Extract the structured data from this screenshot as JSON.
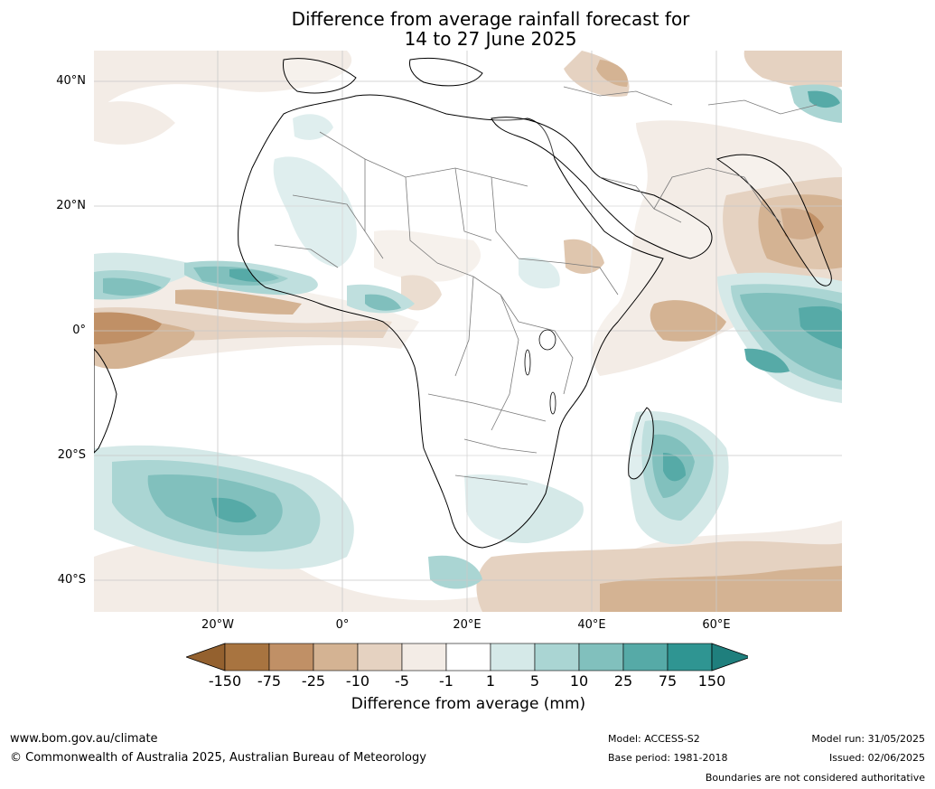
{
  "title_line1": "Difference from average rainfall forecast for",
  "title_line2": "14 to 27 June 2025",
  "lat_labels": [
    "40°N",
    "20°N",
    "0°",
    "20°S",
    "40°S"
  ],
  "lon_labels": [
    "20°W",
    "0°",
    "20°E",
    "40°E",
    "60°E"
  ],
  "colorbar": {
    "ticks": [
      "-150",
      "-75",
      "-25",
      "-10",
      "-5",
      "-1",
      "1",
      "5",
      "10",
      "25",
      "75",
      "150"
    ],
    "colors": [
      "#a87440",
      "#c09066",
      "#d4b393",
      "#e5d2c1",
      "#f3ece6",
      "#ffffff",
      "#d5e9e8",
      "#aad5d3",
      "#81c0bd",
      "#56aaa7",
      "#2f9592"
    ],
    "extend_low_color": "#94612f",
    "extend_high_color": "#1f7f7d",
    "label": "Difference from average (mm)"
  },
  "footer": {
    "website": "www.bom.gov.au/climate",
    "copyright": "© Commonwealth of Australia 2025, Australian Bureau of Meteorology",
    "model": "Model: ACCESS-S2",
    "base_period": "Base period: 1981-2018",
    "model_run": "Model run: 31/05/2025",
    "issued": "Issued: 02/06/2025",
    "disclaimer": "Boundaries are not considered authoritative"
  }
}
